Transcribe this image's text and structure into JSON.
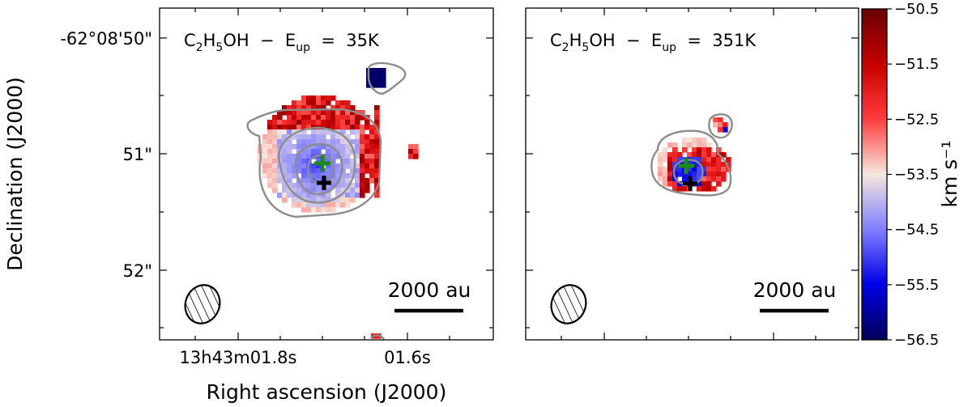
{
  "chart_data": {
    "type": "heatmap",
    "xlabel": "Right ascension (J2000)",
    "ylabel": "Declination (J2000)",
    "x_tick_labels": [
      "13h43m01.8s",
      "01.6s"
    ],
    "y_tick_labels": [
      "-62°08'50\"",
      "51\"",
      "52\""
    ],
    "colormap": "seismic (blue-white-red)",
    "colorbar": {
      "label": "km s⁻¹",
      "range": [
        -56.5,
        -50.5
      ],
      "tick_labels": [
        "−50.5",
        "−51.5",
        "−52.5",
        "−53.5",
        "−54.5",
        "−55.5",
        "−56.5"
      ]
    },
    "panels": [
      {
        "title_main": "C",
        "title_sub1": "2",
        "title_mid": "H",
        "title_sub2": "5",
        "title_rest": "OH  −  E",
        "title_sub3": "up",
        "title_tail": "  =  35K",
        "scalebar_label": "2000 au",
        "markers": [
          "green-cross",
          "black-cross"
        ],
        "beam": "hatched-ellipse",
        "velocity_pattern": "blue-shifted core with red-shifted eastern/northern edge"
      },
      {
        "title_main": "C",
        "title_sub1": "2",
        "title_mid": "H",
        "title_sub2": "5",
        "title_rest": "OH  −  E",
        "title_sub3": "up",
        "title_tail": "  =  351K",
        "scalebar_label": "2000 au",
        "markers": [
          "green-cross",
          "black-cross"
        ],
        "beam": "hatched-ellipse",
        "velocity_pattern": "compact gradient, blue center to red outskirts"
      }
    ]
  }
}
